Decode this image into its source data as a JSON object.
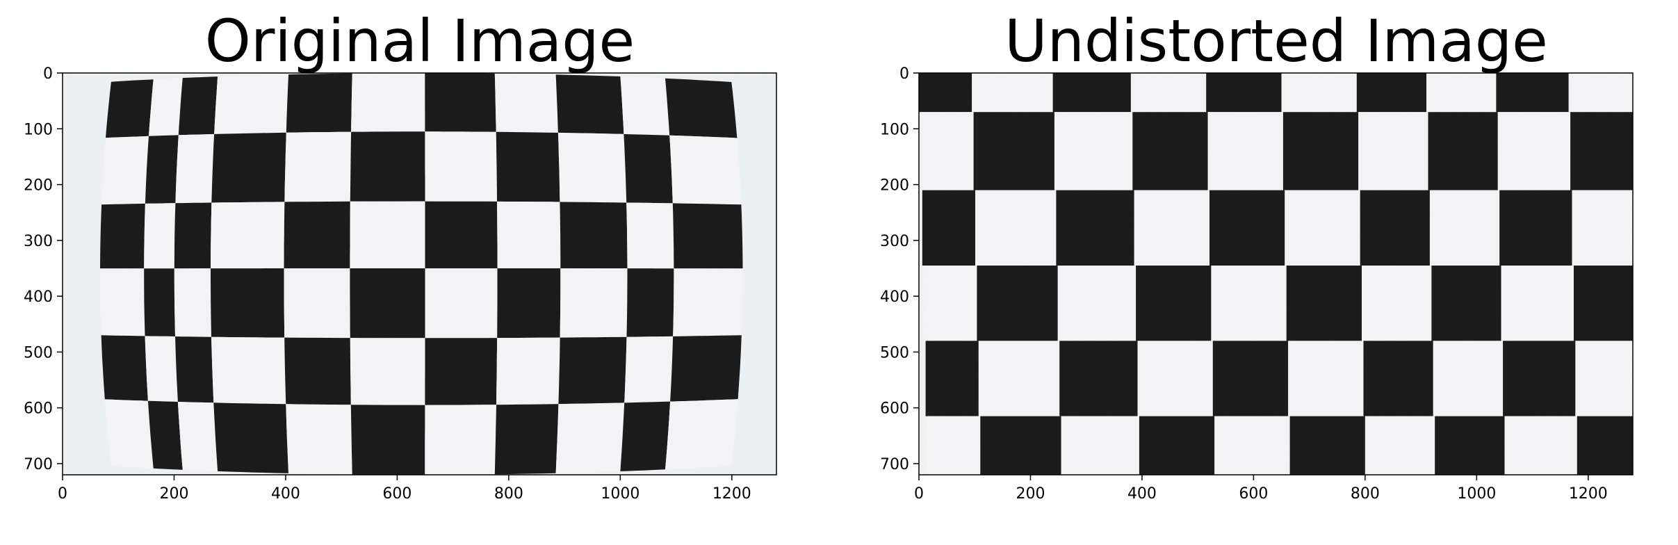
{
  "panels": [
    {
      "id": "original",
      "title": "Original Image",
      "x_ticks": [
        "0",
        "200",
        "400",
        "600",
        "800",
        "1000",
        "1200"
      ],
      "y_ticks": [
        "0",
        "100",
        "200",
        "300",
        "400",
        "500",
        "600",
        "700"
      ],
      "image_width": 1280,
      "image_height": 720,
      "content": "distorted checkerboard photo"
    },
    {
      "id": "undistorted",
      "title": "Undistorted Image",
      "x_ticks": [
        "0",
        "200",
        "400",
        "600",
        "800",
        "1000",
        "1200"
      ],
      "y_ticks": [
        "0",
        "100",
        "200",
        "300",
        "400",
        "500",
        "600",
        "700"
      ],
      "image_width": 1280,
      "image_height": 720,
      "content": "corrected checkerboard photo"
    }
  ]
}
